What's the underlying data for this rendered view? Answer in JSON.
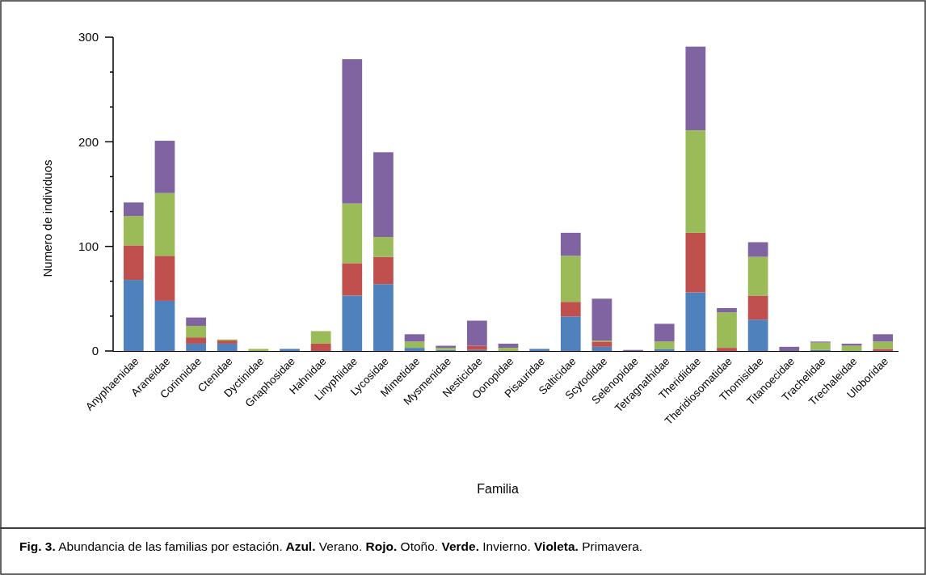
{
  "chart_data": {
    "type": "bar",
    "stacked": true,
    "xlabel": "Familia",
    "ylabel": "Numero de individuos",
    "categories": [
      "Anyphaenidae",
      "Araneidae",
      "Corinnidae",
      "Ctenidae",
      "Dyctinidae",
      "Gnaphosidae",
      "Hahnidae",
      "Linyphiidae",
      "Lycosidae",
      "Mimetidae",
      "Mysmenidae",
      "Nesticidae",
      "Oonopidae",
      "Pisauridae",
      "Salticidae",
      "Scytodidae",
      "Selenopidae",
      "Tetragnathidae",
      "Theridiidae",
      "Theridiosomatidae",
      "Thomisidae",
      "Titanoecidae",
      "Trachelidae",
      "Trechaleidae",
      "Uloboridae"
    ],
    "series": [
      {
        "color": "#4f81bd",
        "values": [
          68,
          48,
          7,
          7,
          0,
          2,
          0,
          53,
          64,
          3,
          1,
          1,
          0,
          2,
          33,
          4,
          0,
          2,
          56,
          0,
          30,
          0,
          1,
          0,
          0
        ]
      },
      {
        "color": "#c0504d",
        "values": [
          33,
          43,
          6,
          3,
          0,
          0,
          7,
          31,
          26,
          0,
          0,
          4,
          0,
          0,
          14,
          5,
          0,
          0,
          57,
          3,
          23,
          0,
          0,
          0,
          2
        ]
      },
      {
        "color": "#9bbb59",
        "values": [
          28,
          60,
          11,
          1,
          2,
          0,
          12,
          57,
          19,
          6,
          2,
          0,
          3,
          0,
          44,
          1,
          0,
          7,
          98,
          34,
          37,
          0,
          7,
          5,
          7
        ]
      },
      {
        "color": "#8064a2",
        "values": [
          13,
          50,
          8,
          0,
          0,
          0,
          0,
          138,
          81,
          7,
          2,
          24,
          4,
          0,
          22,
          40,
          1,
          17,
          80,
          4,
          14,
          4,
          1,
          2,
          7
        ]
      }
    ],
    "ylim": [
      0,
      300
    ],
    "yticks": [
      0,
      {
        "value": 33.33,
        "label": null
      },
      {
        "value": 66.67,
        "label": null
      },
      100,
      {
        "value": 133.33,
        "label": null
      },
      {
        "value": 166.67,
        "label": null
      },
      200,
      {
        "value": 233.33,
        "label": null
      },
      {
        "value": 266.67,
        "label": null
      },
      300
    ],
    "grid": false,
    "annotations": [
      "Fig. 3. Abundancia de las familias por estación. Azul. Verano. Rojo. Otoño. Verde. Invierno. Violeta. Primavera."
    ]
  }
}
